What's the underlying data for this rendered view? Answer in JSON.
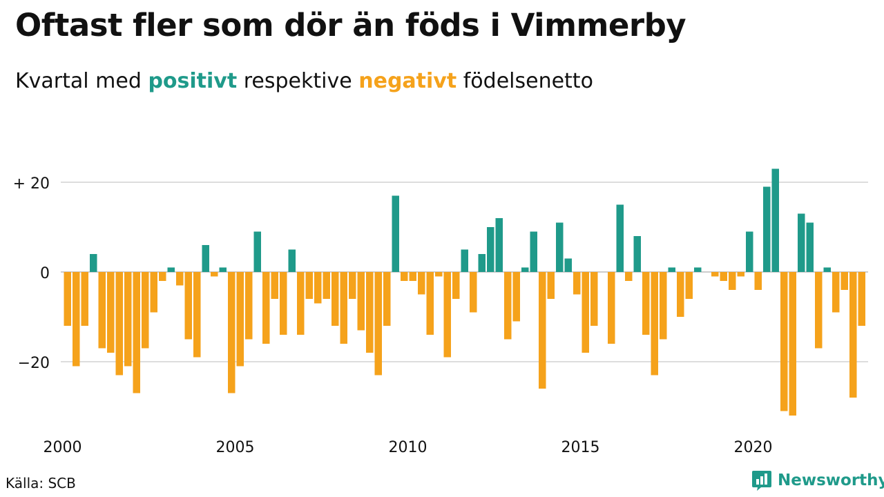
{
  "title": "Oftast fler som dör än föds i Vimmerby",
  "subtitle": {
    "prefix": "Kvartal med",
    "positive": "positivt",
    "middle": "respektive",
    "negative": "negativt",
    "suffix": "födelsenetto"
  },
  "source": "Källa: SCB",
  "brand": "Newsworthy",
  "colors": {
    "positive": "#1f9a8a",
    "negative": "#f5a21b",
    "grid": "#dddddd",
    "text": "#111111"
  },
  "chart_data": {
    "type": "bar",
    "title": "Oftast fler som dör än föds i Vimmerby",
    "subtitle": "Kvartal med positivt respektive negativt födelsenetto",
    "xlabel": "",
    "ylabel": "",
    "x_tick_labels": [
      "2000",
      "2005",
      "2010",
      "2015",
      "2020"
    ],
    "y_ticks": [
      20,
      0,
      -20
    ],
    "y_tick_labels": [
      "+ 20",
      "0",
      "−20"
    ],
    "ylim": [
      -33,
      24
    ],
    "grid": true,
    "start": "2000 Q1",
    "frequency": "quarterly",
    "values": [
      -12,
      -21,
      -12,
      4,
      -17,
      -18,
      -23,
      -21,
      -27,
      -17,
      -9,
      -2,
      1,
      -3,
      -15,
      -19,
      6,
      -1,
      1,
      -27,
      -21,
      -15,
      9,
      -16,
      -6,
      -14,
      5,
      -14,
      -6,
      -7,
      -6,
      -12,
      -16,
      -6,
      -13,
      -18,
      -23,
      -12,
      17,
      -2,
      -2,
      -5,
      -14,
      -1,
      -19,
      -6,
      5,
      -9,
      4,
      10,
      12,
      -15,
      -11,
      1,
      9,
      -26,
      -6,
      11,
      3,
      -5,
      -18,
      -12,
      0,
      -16,
      15,
      -2,
      8,
      -14,
      -23,
      -15,
      1,
      -10,
      -6,
      1,
      0,
      -1,
      -2,
      -4,
      -1,
      9,
      -4,
      19,
      23,
      -31,
      -32,
      13,
      11,
      -17,
      1,
      -9,
      -4,
      -28,
      -12
    ]
  }
}
